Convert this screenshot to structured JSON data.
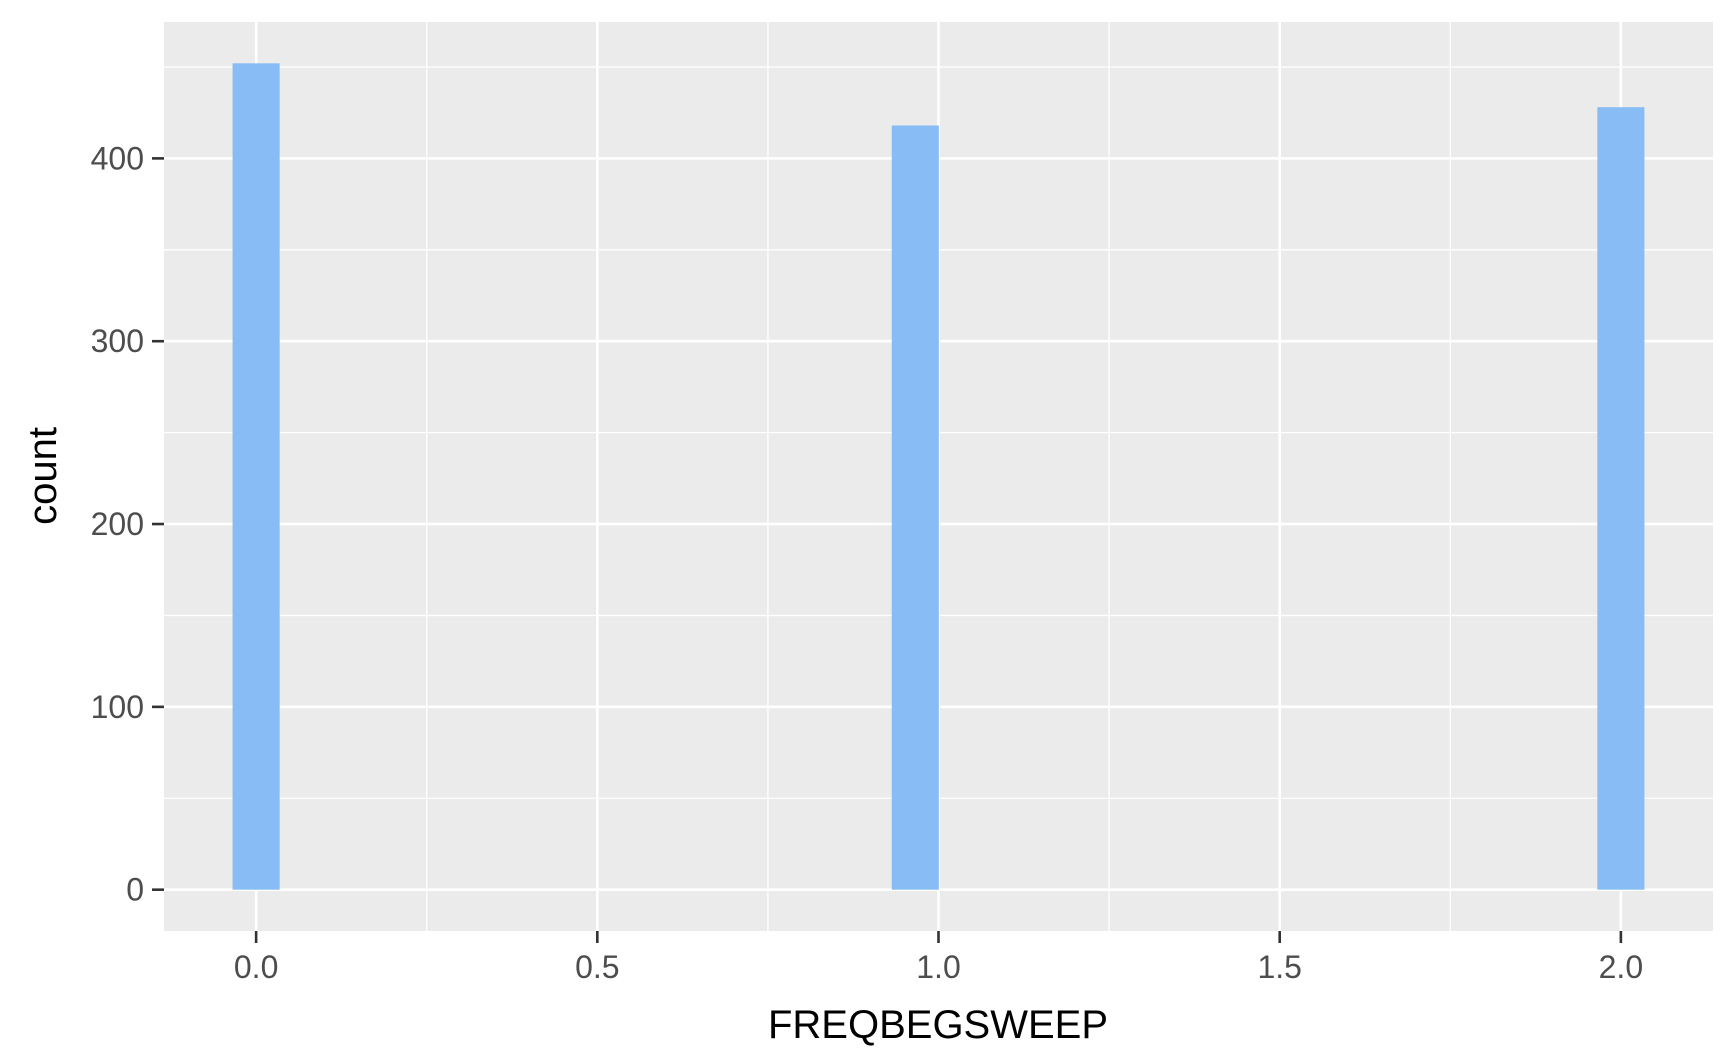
{
  "chart_data": {
    "type": "bar",
    "title": "",
    "xlabel": "FREQBEGSWEEP",
    "ylabel": "count",
    "xlim": [
      -0.135,
      2.135
    ],
    "ylim": [
      -22.6,
      474.6
    ],
    "x_ticks": [
      0.0,
      0.5,
      1.0,
      1.5,
      2.0
    ],
    "x_tick_labels": [
      "0.0",
      "0.5",
      "1.0",
      "1.5",
      "2.0"
    ],
    "y_ticks": [
      0,
      100,
      200,
      300,
      400
    ],
    "y_tick_labels": [
      "0",
      "100",
      "200",
      "300",
      "400"
    ],
    "bins": [
      {
        "x": 0.0,
        "count": 452
      },
      {
        "x": 0.966,
        "count": 418
      },
      {
        "x": 2.0,
        "count": 428
      }
    ],
    "bar_width": 0.069,
    "bar_color": "#87BCF5",
    "panel_background": "#EBEBEB",
    "grid_color": "#FFFFFF",
    "grid": true,
    "legend": "none"
  }
}
